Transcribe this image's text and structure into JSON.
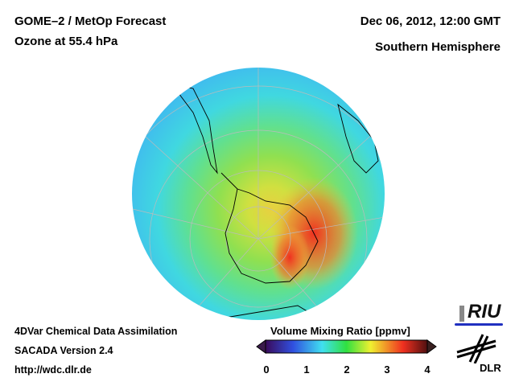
{
  "header": {
    "title": "GOME–2 / MetOp Forecast",
    "subtitle": "Ozone at 55.4 hPa",
    "datetime": "Dec 06, 2012, 12:00 GMT",
    "region": "Southern Hemisphere"
  },
  "footer": {
    "line1": "4DVar Chemical Data Assimilation",
    "line2": "SACADA Version 2.4",
    "line3": "http://wdc.dlr.de"
  },
  "colorbar": {
    "title": "Volume Mixing Ratio [ppmv]",
    "ticks": [
      "0",
      "1",
      "2",
      "3",
      "4"
    ],
    "range": [
      0,
      4
    ],
    "colors": [
      "#3a0a5a",
      "#3050e0",
      "#40e0f0",
      "#30e040",
      "#f0f030",
      "#f03020",
      "#501010"
    ]
  },
  "logos": {
    "riu": "RIU",
    "dlr": "DLR"
  }
}
